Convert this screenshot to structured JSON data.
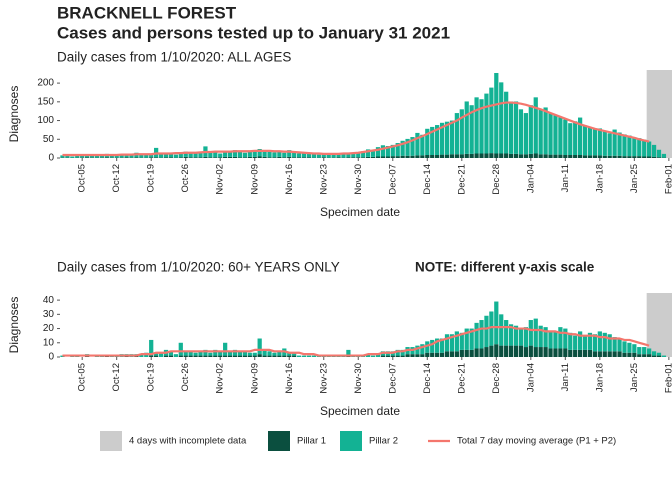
{
  "title": "BRACKNELL FOREST",
  "subtitle": "Cases and persons tested up to January 31 2021",
  "chart_data": [
    {
      "type": "bar",
      "stacked": true,
      "subtitle": "Daily cases from 1/10/2020: ALL AGES",
      "x_label": "Specimen date",
      "y_label": "Diagnoses",
      "categories": [
        null,
        null,
        null,
        null,
        "Oct-05",
        null,
        null,
        null,
        null,
        null,
        null,
        "Oct-12",
        null,
        null,
        null,
        null,
        null,
        null,
        "Oct-19",
        null,
        null,
        null,
        null,
        null,
        null,
        "Oct-26",
        null,
        null,
        null,
        null,
        null,
        null,
        "Nov-02",
        null,
        null,
        null,
        null,
        null,
        null,
        "Nov-09",
        null,
        null,
        null,
        null,
        null,
        null,
        "Nov-16",
        null,
        null,
        null,
        null,
        null,
        null,
        "Nov-23",
        null,
        null,
        null,
        null,
        null,
        null,
        "Nov-30",
        null,
        null,
        null,
        null,
        null,
        null,
        "Dec-07",
        null,
        null,
        null,
        null,
        null,
        null,
        "Dec-14",
        null,
        null,
        null,
        null,
        null,
        null,
        "Dec-21",
        null,
        null,
        null,
        null,
        null,
        null,
        "Dec-28",
        null,
        null,
        null,
        null,
        null,
        null,
        "Jan-04",
        null,
        null,
        null,
        null,
        null,
        null,
        "Jan-11",
        null,
        null,
        null,
        null,
        null,
        null,
        "Jan-18",
        null,
        null,
        null,
        null,
        null,
        null,
        "Jan-25",
        null,
        null,
        null,
        null,
        null,
        null,
        "Feb-01"
      ],
      "series": [
        {
          "name": "Pillar 1",
          "color": "#0b4f3f",
          "values": [
            1,
            1,
            0,
            1,
            1,
            2,
            1,
            1,
            1,
            2,
            1,
            1,
            1,
            2,
            1,
            2,
            1,
            1,
            2,
            2,
            1,
            2,
            2,
            1,
            2,
            3,
            2,
            2,
            2,
            3,
            2,
            2,
            2,
            3,
            3,
            3,
            2,
            2,
            3,
            3,
            4,
            3,
            2,
            2,
            3,
            2,
            3,
            2,
            2,
            2,
            2,
            1,
            1,
            2,
            1,
            1,
            2,
            1,
            2,
            2,
            2,
            2,
            3,
            3,
            4,
            4,
            4,
            5,
            5,
            6,
            6,
            6,
            7,
            7,
            8,
            8,
            8,
            9,
            9,
            10,
            10,
            10,
            11,
            11,
            12,
            12,
            12,
            13,
            12,
            12,
            12,
            11,
            11,
            10,
            10,
            11,
            12,
            10,
            10,
            9,
            9,
            9,
            8,
            8,
            8,
            8,
            7,
            7,
            7,
            7,
            6,
            6,
            6,
            6,
            5,
            5,
            5,
            5,
            4,
            4,
            3,
            2,
            1,
            null
          ]
        },
        {
          "name": "Pillar 2",
          "color": "#13b294",
          "values": [
            6,
            5,
            4,
            7,
            8,
            6,
            5,
            7,
            8,
            9,
            6,
            5,
            8,
            9,
            10,
            12,
            8,
            7,
            10,
            25,
            12,
            10,
            9,
            8,
            12,
            14,
            11,
            10,
            13,
            28,
            12,
            14,
            10,
            12,
            16,
            18,
            15,
            12,
            14,
            16,
            20,
            18,
            15,
            13,
            14,
            12,
            18,
            15,
            10,
            12,
            11,
            9,
            8,
            10,
            9,
            8,
            10,
            9,
            11,
            12,
            14,
            16,
            20,
            18,
            25,
            30,
            28,
            30,
            35,
            40,
            45,
            50,
            60,
            55,
            70,
            75,
            80,
            85,
            88,
            90,
            110,
            120,
            140,
            130,
            150,
            145,
            160,
            175,
            215,
            190,
            165,
            140,
            140,
            120,
            110,
            130,
            150,
            120,
            125,
            110,
            105,
            100,
            95,
            85,
            90,
            100,
            80,
            75,
            70,
            72,
            65,
            60,
            70,
            62,
            58,
            55,
            50,
            48,
            45,
            40,
            32,
            20,
            10,
            null
          ]
        },
        {
          "name": "Total 7 day moving average (P1 + P2)",
          "type": "line",
          "color": "#f4766d",
          "values": [
            8,
            8,
            8,
            8,
            8,
            8,
            8,
            8,
            8,
            8,
            8,
            8,
            9,
            9,
            9,
            10,
            10,
            10,
            10,
            12,
            12,
            12,
            12,
            13,
            13,
            14,
            14,
            14,
            15,
            16,
            16,
            17,
            17,
            17,
            17,
            18,
            18,
            18,
            18,
            19,
            19,
            19,
            19,
            18,
            18,
            17,
            17,
            16,
            15,
            14,
            13,
            12,
            12,
            11,
            11,
            11,
            11,
            12,
            12,
            13,
            14,
            16,
            18,
            20,
            22,
            25,
            28,
            31,
            34,
            38,
            42,
            47,
            53,
            58,
            64,
            70,
            76,
            82,
            88,
            94,
            100,
            108,
            115,
            122,
            128,
            133,
            137,
            140,
            143,
            146,
            148,
            148,
            147,
            145,
            142,
            138,
            134,
            130,
            125,
            120,
            115,
            110,
            105,
            100,
            95,
            90,
            86,
            82,
            78,
            75,
            72,
            69,
            66,
            63,
            60,
            57,
            54,
            50,
            47,
            44,
            null,
            null,
            null,
            null
          ]
        }
      ],
      "ylim": [
        0,
        235
      ],
      "yticks": [
        0,
        50,
        100,
        150,
        200
      ],
      "shade": {
        "label": "4 days with incomplete data",
        "days": 4,
        "color": "#cccccc"
      }
    },
    {
      "type": "bar",
      "stacked": true,
      "subtitle": "Daily cases from 1/10/2020: 60+ YEARS ONLY",
      "note": "NOTE: different y-axis scale",
      "x_label": "Specimen date",
      "y_label": "Diagnoses",
      "categories": [
        null,
        null,
        null,
        null,
        "Oct-05",
        null,
        null,
        null,
        null,
        null,
        null,
        "Oct-12",
        null,
        null,
        null,
        null,
        null,
        null,
        "Oct-19",
        null,
        null,
        null,
        null,
        null,
        null,
        "Oct-26",
        null,
        null,
        null,
        null,
        null,
        null,
        "Nov-02",
        null,
        null,
        null,
        null,
        null,
        null,
        "Nov-09",
        null,
        null,
        null,
        null,
        null,
        null,
        "Nov-16",
        null,
        null,
        null,
        null,
        null,
        null,
        "Nov-23",
        null,
        null,
        null,
        null,
        null,
        null,
        "Nov-30",
        null,
        null,
        null,
        null,
        null,
        null,
        "Dec-07",
        null,
        null,
        null,
        null,
        null,
        null,
        "Dec-14",
        null,
        null,
        null,
        null,
        null,
        null,
        "Dec-21",
        null,
        null,
        null,
        null,
        null,
        null,
        "Dec-28",
        null,
        null,
        null,
        null,
        null,
        null,
        "Jan-04",
        null,
        null,
        null,
        null,
        null,
        null,
        "Jan-11",
        null,
        null,
        null,
        null,
        null,
        null,
        "Jan-18",
        null,
        null,
        null,
        null,
        null,
        null,
        "Jan-25",
        null,
        null,
        null,
        null,
        null,
        null,
        "Feb-01"
      ],
      "series": [
        {
          "color": "#0b4f3f",
          "values": [
            0,
            0,
            0,
            0,
            0,
            1,
            0,
            0,
            0,
            1,
            0,
            0,
            0,
            1,
            0,
            1,
            0,
            0,
            1,
            1,
            0,
            1,
            1,
            0,
            1,
            1,
            1,
            1,
            1,
            1,
            1,
            1,
            1,
            1,
            1,
            1,
            1,
            1,
            1,
            1,
            2,
            1,
            1,
            1,
            1,
            1,
            1,
            1,
            0,
            0,
            0,
            0,
            0,
            0,
            0,
            0,
            0,
            0,
            1,
            0,
            0,
            0,
            0,
            0,
            0,
            1,
            1,
            1,
            1,
            1,
            2,
            2,
            2,
            2,
            3,
            3,
            3,
            3,
            4,
            4,
            4,
            5,
            5,
            5,
            6,
            6,
            7,
            8,
            9,
            8,
            8,
            8,
            8,
            8,
            7,
            8,
            7,
            7,
            7,
            6,
            6,
            6,
            6,
            5,
            5,
            5,
            5,
            5,
            4,
            4,
            4,
            4,
            4,
            4,
            3,
            3,
            3,
            2,
            2,
            2,
            1,
            1,
            0,
            null
          ]
        },
        {
          "color": "#13b294",
          "values": [
            1,
            0,
            1,
            1,
            0,
            1,
            0,
            1,
            1,
            0,
            1,
            1,
            2,
            1,
            2,
            1,
            2,
            3,
            11,
            2,
            3,
            4,
            3,
            2,
            9,
            3,
            3,
            2,
            3,
            4,
            2,
            4,
            3,
            9,
            3,
            4,
            3,
            3,
            2,
            2,
            11,
            4,
            3,
            2,
            3,
            5,
            2,
            2,
            1,
            1,
            1,
            1,
            1,
            1,
            1,
            1,
            1,
            1,
            4,
            1,
            1,
            1,
            2,
            1,
            2,
            3,
            3,
            3,
            4,
            4,
            5,
            5,
            6,
            7,
            8,
            9,
            10,
            10,
            12,
            12,
            14,
            12,
            15,
            15,
            18,
            20,
            22,
            24,
            30,
            22,
            18,
            15,
            14,
            12,
            14,
            18,
            20,
            15,
            14,
            12,
            12,
            15,
            14,
            12,
            10,
            13,
            10,
            12,
            12,
            14,
            13,
            12,
            10,
            9,
            8,
            7,
            6,
            5,
            5,
            4,
            3,
            2,
            1,
            null
          ]
        },
        {
          "type": "line",
          "color": "#f4766d",
          "values": [
            1,
            1,
            1,
            1,
            1,
            1,
            1,
            1,
            1,
            1,
            1,
            1,
            1,
            1,
            1,
            1,
            2,
            2,
            2,
            3,
            3,
            3,
            4,
            4,
            4,
            4,
            4,
            4,
            4,
            4,
            4,
            4,
            4,
            4,
            4,
            4,
            4,
            4,
            4,
            5,
            5,
            5,
            5,
            4,
            4,
            4,
            3,
            3,
            3,
            2,
            2,
            2,
            1,
            1,
            1,
            1,
            1,
            1,
            1,
            1,
            1,
            1,
            2,
            2,
            2,
            3,
            3,
            3,
            4,
            4,
            5,
            5,
            6,
            7,
            8,
            9,
            11,
            12,
            13,
            14,
            15,
            16,
            17,
            18,
            19,
            20,
            20,
            21,
            21,
            21,
            21,
            21,
            20,
            20,
            20,
            19,
            19,
            19,
            18,
            18,
            18,
            17,
            17,
            16,
            16,
            15,
            15,
            15,
            15,
            14,
            14,
            13,
            13,
            13,
            12,
            12,
            11,
            10,
            9,
            8,
            null,
            null,
            null,
            null
          ]
        }
      ],
      "ylim": [
        0,
        45
      ],
      "yticks": [
        0,
        10,
        20,
        30,
        40
      ],
      "shade": {
        "days": 4,
        "color": "#cccccc"
      }
    }
  ]
}
